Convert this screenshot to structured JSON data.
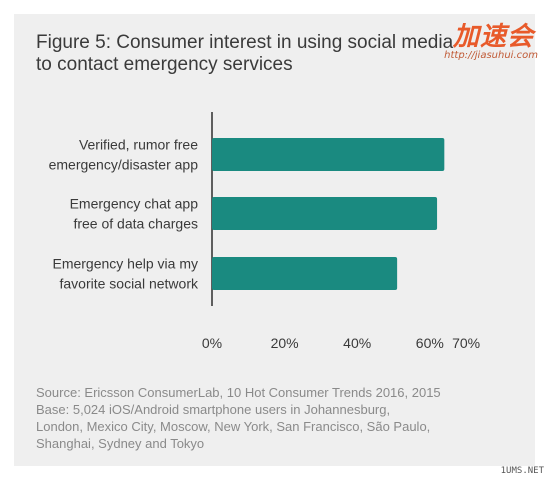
{
  "title_lines": [
    "Figure 5: Consumer interest in using social media",
    "to contact emergency services"
  ],
  "chart_data": {
    "type": "bar",
    "orientation": "horizontal",
    "categories": [
      [
        "Verified, rumor free",
        "emergency/disaster app"
      ],
      [
        "Emergency chat app",
        "free of data charges"
      ],
      [
        "Emergency help via my",
        "favorite social network"
      ]
    ],
    "values": [
      64,
      62,
      51
    ],
    "xlim": [
      0,
      70
    ],
    "xticks": [
      "0%",
      "20%",
      "40%",
      "60%",
      "70%"
    ],
    "xtick_values": [
      0,
      20,
      40,
      60,
      70
    ],
    "bar_color": "#1a8a80",
    "grid": false
  },
  "source_lines": [
    "Source: Ericsson ConsumerLab, 10 Hot Consumer Trends 2016, 2015",
    "Base: 5,024 iOS/Android smartphone users in Johannesburg,",
    "London, Mexico City, Moscow, New York, San Francisco, São Paulo,",
    "Shanghai, Sydney and Tokyo"
  ],
  "watermark": {
    "logo_text": "加速会",
    "url": "http://jiasuhui.com"
  },
  "corner_tag": "1UMS.NET",
  "colors": {
    "card_background": "#efefef",
    "text": "#3a3a3a",
    "source_text": "#8a8a8a",
    "axis": "#3a3a3a"
  }
}
